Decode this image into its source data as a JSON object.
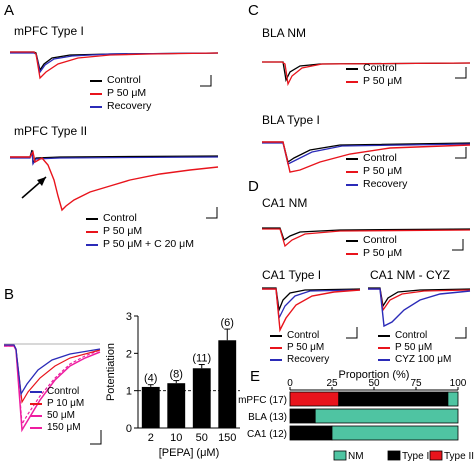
{
  "panels": {
    "A": {
      "letter": "A",
      "type1": {
        "title": "mPFC  Type I",
        "legend": [
          "Control",
          "P 50 μM",
          "Recovery"
        ]
      },
      "type2": {
        "title": "mPFC  Type II",
        "legend": [
          "Control",
          "P 50 μM",
          "P 50 μM + C 20 μM"
        ]
      }
    },
    "B": {
      "letter": "B",
      "legend": [
        "Control",
        "P 10 μM",
        "50 μM",
        "150 μM"
      ],
      "bar_chart": {
        "ylabel": "Potentiation",
        "xlabel": "[PEPA] (μM)"
      }
    },
    "C": {
      "letter": "C",
      "nm": {
        "title": "BLA NM",
        "legend": [
          "Control",
          "P 50 μM"
        ]
      },
      "type1": {
        "title": "BLA Type I",
        "legend": [
          "Control",
          "P 50 μM",
          "Recovery"
        ]
      }
    },
    "D": {
      "letter": "D",
      "nm": {
        "title": "CA1 NM",
        "legend": [
          "Control",
          "P 50 μM"
        ]
      },
      "type1": {
        "title": "CA1 Type I",
        "legend": [
          "Control",
          "P 50 μM",
          "Recovery"
        ]
      },
      "cyz": {
        "title": "CA1 NM - CYZ",
        "legend": [
          "Control",
          "P 50 μM",
          "CYZ 100 μM"
        ]
      }
    },
    "E": {
      "letter": "E",
      "legend": [
        "NM",
        "Type I",
        "Type II"
      ]
    }
  },
  "colors": {
    "control": "#000000",
    "pepa": "#e8141c",
    "recovery": "#2b2bb8",
    "pepa_light": "#ee1da0",
    "nm": "#4fc4a2",
    "type1": "#000000",
    "type2": "#e8141c"
  },
  "chart_data": [
    {
      "type": "bar",
      "categories": [
        "2",
        "10",
        "50",
        "150"
      ],
      "values": [
        1.1,
        1.2,
        1.6,
        2.35
      ],
      "errors": [
        0.06,
        0.07,
        0.1,
        0.3
      ],
      "n_labels": [
        "(4)",
        "(8)",
        "(11)",
        "(6)"
      ],
      "xlabel": "[PEPA] (μM)",
      "ylabel": "Potentiation",
      "ylim": [
        0,
        3
      ],
      "yticks": [
        "0",
        "1",
        "2",
        "3"
      ],
      "reference_line": 1
    },
    {
      "type": "bar",
      "orientation": "horizontal-stacked",
      "xlabel": "Proportion (%)",
      "xticks": [
        "0",
        "25",
        "50",
        "75",
        "100"
      ],
      "xlim": [
        0,
        100
      ],
      "categories": [
        "mPFC (17)",
        "BLA (13)",
        "CA1 (12)"
      ],
      "series": [
        {
          "name": "Type II",
          "values": [
            29,
            0,
            0
          ]
        },
        {
          "name": "Type I",
          "values": [
            65,
            15,
            25
          ]
        },
        {
          "name": "NM",
          "values": [
            6,
            85,
            75
          ]
        }
      ]
    }
  ]
}
